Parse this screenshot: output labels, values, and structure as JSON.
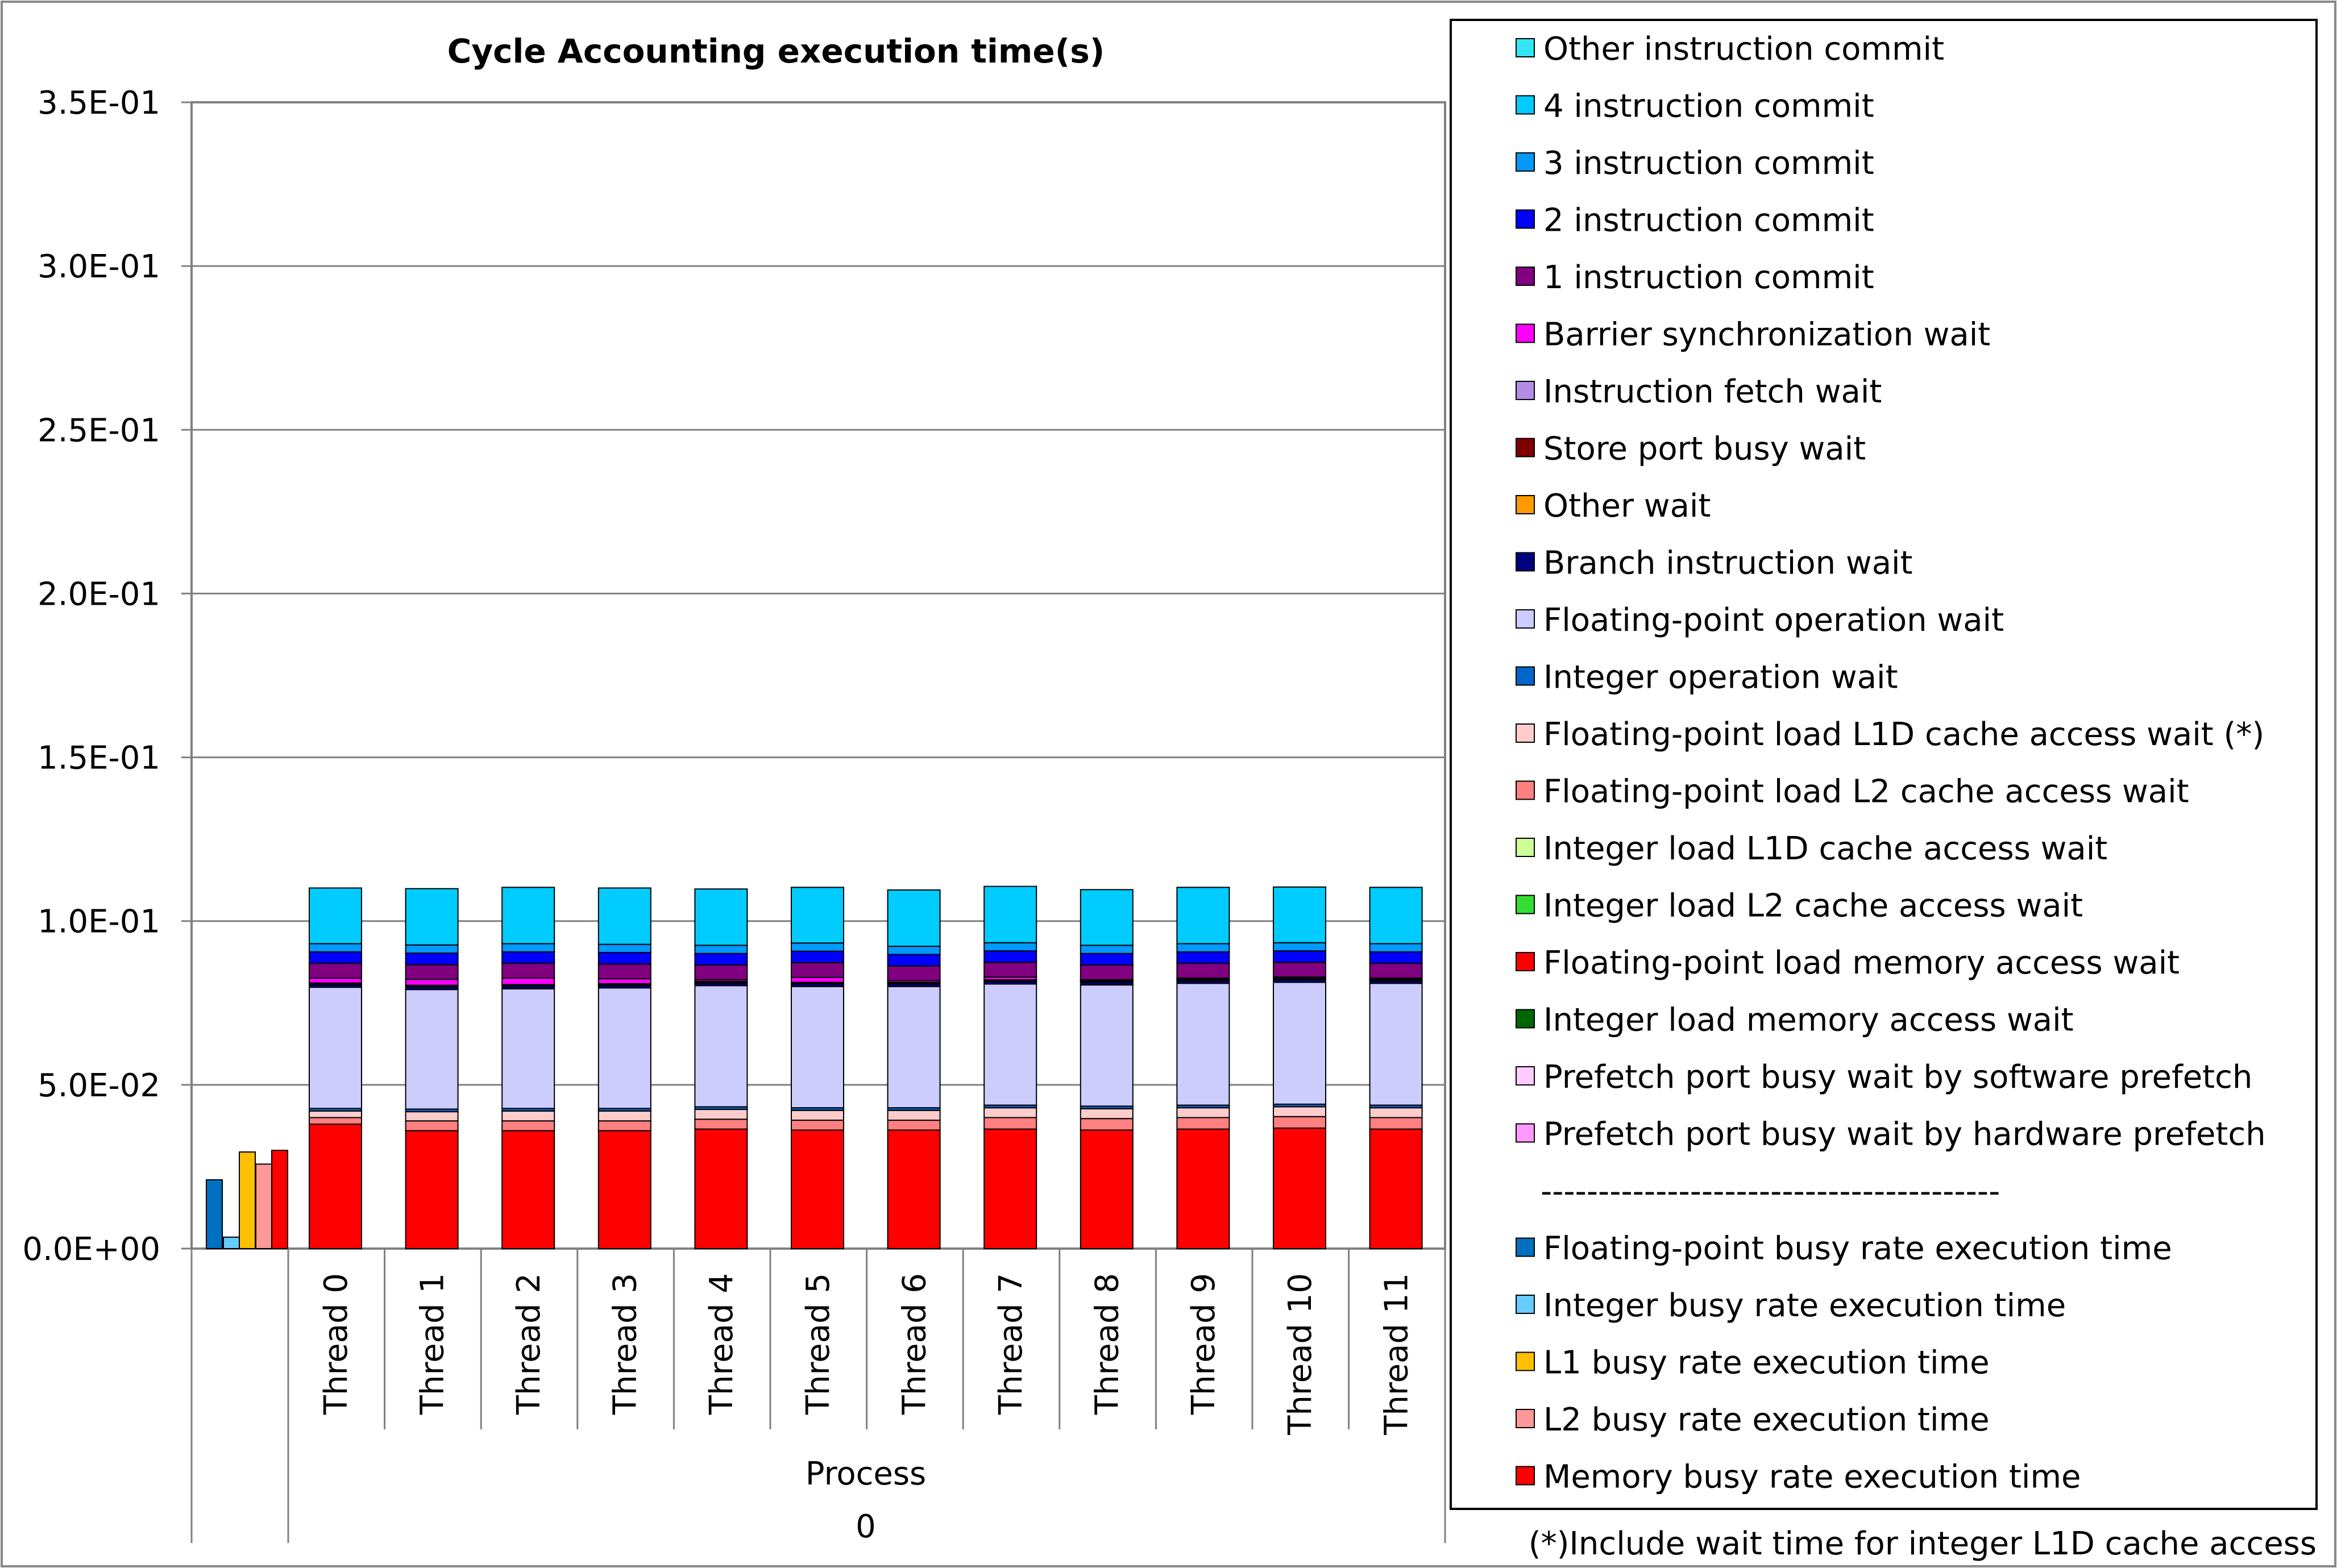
{
  "chart_data": {
    "type": "bar",
    "stacked": true,
    "title": "Cycle Accounting execution time(s)",
    "xlabel": "Process",
    "xlabel2": "0",
    "ylabel": "",
    "ylim": [
      0,
      0.35
    ],
    "yticks": [
      {
        "value": 0,
        "label": "0.0E+00"
      },
      {
        "value": 0.05,
        "label": "5.0E-02"
      },
      {
        "value": 0.1,
        "label": "1.0E-01"
      },
      {
        "value": 0.15,
        "label": "1.5E-01"
      },
      {
        "value": 0.2,
        "label": "2.0E-01"
      },
      {
        "value": 0.25,
        "label": "2.5E-01"
      },
      {
        "value": 0.3,
        "label": "3.0E-01"
      },
      {
        "value": 0.35,
        "label": "3.5E-01"
      }
    ],
    "grid": true,
    "legend_position": "right",
    "categories": [
      "Thread 0",
      "Thread 1",
      "Thread 2",
      "Thread 3",
      "Thread 4",
      "Thread 5",
      "Thread 6",
      "Thread 7",
      "Thread 8",
      "Thread 9",
      "Thread 10",
      "Thread 11"
    ],
    "series": [
      {
        "name": "Other instruction commit",
        "color": "#33E6F5",
        "values": [
          0.0,
          0.0,
          0.0,
          0.0,
          0.0,
          0.0,
          0.0,
          0.0,
          0.0,
          0.0,
          0.0,
          0.0
        ]
      },
      {
        "name": "4 instruction commit",
        "color": "#00CCFF",
        "values": [
          0.017,
          0.0172,
          0.0172,
          0.0172,
          0.0172,
          0.017,
          0.0172,
          0.0172,
          0.017,
          0.0172,
          0.017,
          0.0172
        ]
      },
      {
        "name": "3 instruction commit",
        "color": "#0099FF",
        "values": [
          0.0025,
          0.0025,
          0.0025,
          0.0025,
          0.0025,
          0.0025,
          0.0025,
          0.0025,
          0.0025,
          0.0025,
          0.0025,
          0.0025
        ]
      },
      {
        "name": "2 instruction commit",
        "color": "#0000FF",
        "values": [
          0.0035,
          0.0035,
          0.0035,
          0.0035,
          0.0035,
          0.0035,
          0.0035,
          0.0035,
          0.0035,
          0.0035,
          0.0035,
          0.0035
        ]
      },
      {
        "name": "1 instruction commit",
        "color": "#800080",
        "values": [
          0.0045,
          0.0045,
          0.0045,
          0.0045,
          0.0045,
          0.0045,
          0.0045,
          0.0045,
          0.0045,
          0.0045,
          0.0045,
          0.0045
        ]
      },
      {
        "name": "Barrier synchronization wait",
        "color": "#FF00FF",
        "values": [
          0.0015,
          0.0018,
          0.002,
          0.0015,
          0.0005,
          0.0015,
          0.0005,
          0.0008,
          0.0003,
          0.0003,
          0.0003,
          0.0003
        ]
      },
      {
        "name": "Instruction fetch wait",
        "color": "#B48CE6",
        "values": [
          0.0003,
          0.0003,
          0.0003,
          0.0003,
          0.0003,
          0.0003,
          0.0003,
          0.0003,
          0.0003,
          0.0003,
          0.0003,
          0.0003
        ]
      },
      {
        "name": "Store port busy wait",
        "color": "#800000",
        "values": [
          0.0002,
          0.0002,
          0.0002,
          0.0002,
          0.0002,
          0.0002,
          0.0002,
          0.0002,
          0.0002,
          0.0002,
          0.0002,
          0.0002
        ]
      },
      {
        "name": "Other wait",
        "color": "#FF9900",
        "values": [
          0.0,
          0.0,
          0.0,
          0.0,
          0.0,
          0.0,
          0.0,
          0.0,
          0.0,
          0.0,
          0.0,
          0.0
        ]
      },
      {
        "name": "Branch instruction wait",
        "color": "#000080",
        "values": [
          0.0008,
          0.0008,
          0.0008,
          0.0008,
          0.0008,
          0.0008,
          0.0008,
          0.0008,
          0.0008,
          0.0008,
          0.0008,
          0.0008
        ]
      },
      {
        "name": "Floating-point operation wait",
        "color": "#CCCCFF",
        "values": [
          0.037,
          0.0365,
          0.0365,
          0.0368,
          0.037,
          0.037,
          0.037,
          0.037,
          0.037,
          0.0372,
          0.0372,
          0.0372
        ]
      },
      {
        "name": "Integer operation wait",
        "color": "#0066CC",
        "values": [
          0.0008,
          0.0008,
          0.0008,
          0.0008,
          0.0008,
          0.0008,
          0.0008,
          0.0008,
          0.0008,
          0.0008,
          0.0008,
          0.0008
        ]
      },
      {
        "name": "Floating-point load L1D cache access wait (*)",
        "color": "#FFCCCC",
        "values": [
          0.002,
          0.0028,
          0.003,
          0.003,
          0.003,
          0.003,
          0.003,
          0.003,
          0.003,
          0.003,
          0.003,
          0.003
        ]
      },
      {
        "name": "Floating-point load L2 cache access wait",
        "color": "#FF8080",
        "values": [
          0.002,
          0.003,
          0.003,
          0.003,
          0.003,
          0.003,
          0.003,
          0.0035,
          0.0035,
          0.0035,
          0.0035,
          0.0035
        ]
      },
      {
        "name": "Integer load L1D cache access wait",
        "color": "#CCFF99",
        "values": [
          0.0,
          0.0,
          0.0,
          0.0,
          0.0,
          0.0,
          0.0,
          0.0,
          0.0,
          0.0,
          0.0,
          0.0
        ]
      },
      {
        "name": "Integer load L2 cache access wait",
        "color": "#33DD33",
        "values": [
          0.0,
          0.0,
          0.0,
          0.0,
          0.0,
          0.0,
          0.0,
          0.0,
          0.0,
          0.0,
          0.0,
          0.0
        ]
      },
      {
        "name": "Floating-point load memory access wait",
        "color": "#FF0000",
        "values": [
          0.038,
          0.036,
          0.036,
          0.036,
          0.0365,
          0.0362,
          0.0362,
          0.0365,
          0.0362,
          0.0365,
          0.0368,
          0.0365
        ]
      },
      {
        "name": "Integer load memory access wait",
        "color": "#006600",
        "values": [
          0.0,
          0.0,
          0.0,
          0.0,
          0.0,
          0.0,
          0.0,
          0.0,
          0.0,
          0.0,
          0.0,
          0.0
        ]
      },
      {
        "name": "Prefetch port busy wait by software prefetch",
        "color": "#FFCCFF",
        "values": [
          0.0,
          0.0,
          0.0,
          0.0,
          0.0,
          0.0,
          0.0,
          0.0,
          0.0,
          0.0,
          0.0,
          0.0
        ]
      },
      {
        "name": "Prefetch port busy wait by hardware prefetch",
        "color": "#FF99FF",
        "values": [
          0.0,
          0.0,
          0.0,
          0.0,
          0.0,
          0.0,
          0.0,
          0.0,
          0.0,
          0.0,
          0.0,
          0.0
        ]
      }
    ],
    "stack_order_bottom_to_top": [
      16,
      17,
      13,
      12,
      14,
      15,
      11,
      10,
      9,
      8,
      7,
      6,
      5,
      19,
      18,
      4,
      3,
      2,
      1,
      0
    ],
    "legend_separator": "----------------------------------------",
    "busy_rate": {
      "group_label": "",
      "bars": [
        {
          "name": "Floating-point busy rate execution time",
          "color": "#0070C0",
          "value": 0.021
        },
        {
          "name": "Integer busy rate execution time",
          "color": "#66CCFF",
          "value": 0.0035
        },
        {
          "name": "L1 busy rate execution time",
          "color": "#FFC000",
          "value": 0.0295
        },
        {
          "name": "L2 busy rate execution time",
          "color": "#FF9999",
          "value": 0.0258
        },
        {
          "name": "Memory busy rate execution time",
          "color": "#FF0000",
          "value": 0.03
        }
      ]
    },
    "footnote": "(*)Include wait time for integer L1D cache access"
  }
}
